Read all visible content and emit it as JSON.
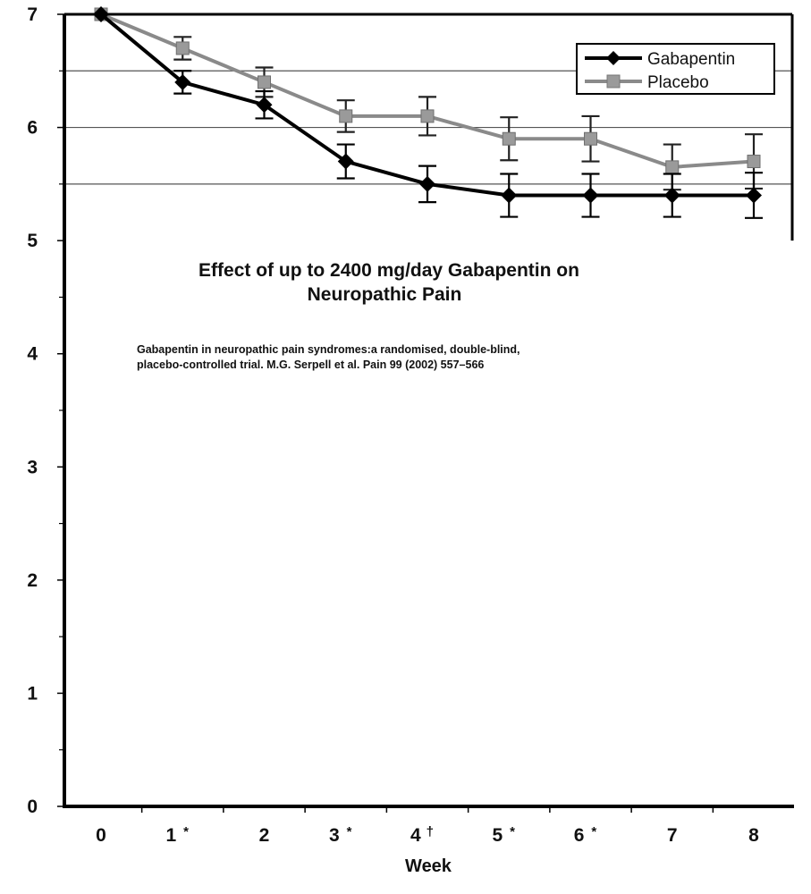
{
  "chart_data": {
    "type": "line",
    "title": [
      "Effect of up to 2400 mg/day Gabapentin on",
      "Neuropathic Pain"
    ],
    "annotation": [
      "Gabapentin in neuropathic pain syndromes:a randomised, double-blind,",
      "placebo-controlled trial. M.G. Serpell et al. Pain 99 (2002) 557–566"
    ],
    "xlabel": "Week",
    "ylabel": "",
    "x": [
      0,
      1,
      2,
      3,
      4,
      5,
      6,
      7,
      8
    ],
    "x_tick_labels": [
      "0",
      "1 *",
      "2",
      "3 *",
      "4 †",
      "5 *",
      "6 *",
      "7",
      "8"
    ],
    "ylim": [
      0,
      7
    ],
    "y_ticks": [
      0,
      1,
      2,
      3,
      4,
      5,
      6,
      7
    ],
    "y_tick_labels": [
      "0",
      "1",
      "2",
      "3",
      "4",
      "5",
      "6",
      "7"
    ],
    "gridlines_y": [
      5.5,
      6.0,
      6.5
    ],
    "legend_position": "top-right",
    "series": [
      {
        "name": "Gabapentin",
        "color": "#000000",
        "marker": "diamond",
        "values": [
          7.0,
          6.4,
          6.2,
          5.7,
          5.5,
          5.4,
          5.4,
          5.4,
          5.4
        ],
        "error": [
          0,
          0.1,
          0.12,
          0.15,
          0.16,
          0.19,
          0.19,
          0.19,
          0.2
        ]
      },
      {
        "name": "Placebo",
        "color": "#8a8a8a",
        "marker": "square",
        "values": [
          7.0,
          6.7,
          6.4,
          6.1,
          6.1,
          5.9,
          5.9,
          5.65,
          5.7
        ],
        "error": [
          0,
          0.1,
          0.13,
          0.14,
          0.17,
          0.19,
          0.2,
          0.2,
          0.24
        ]
      }
    ]
  }
}
